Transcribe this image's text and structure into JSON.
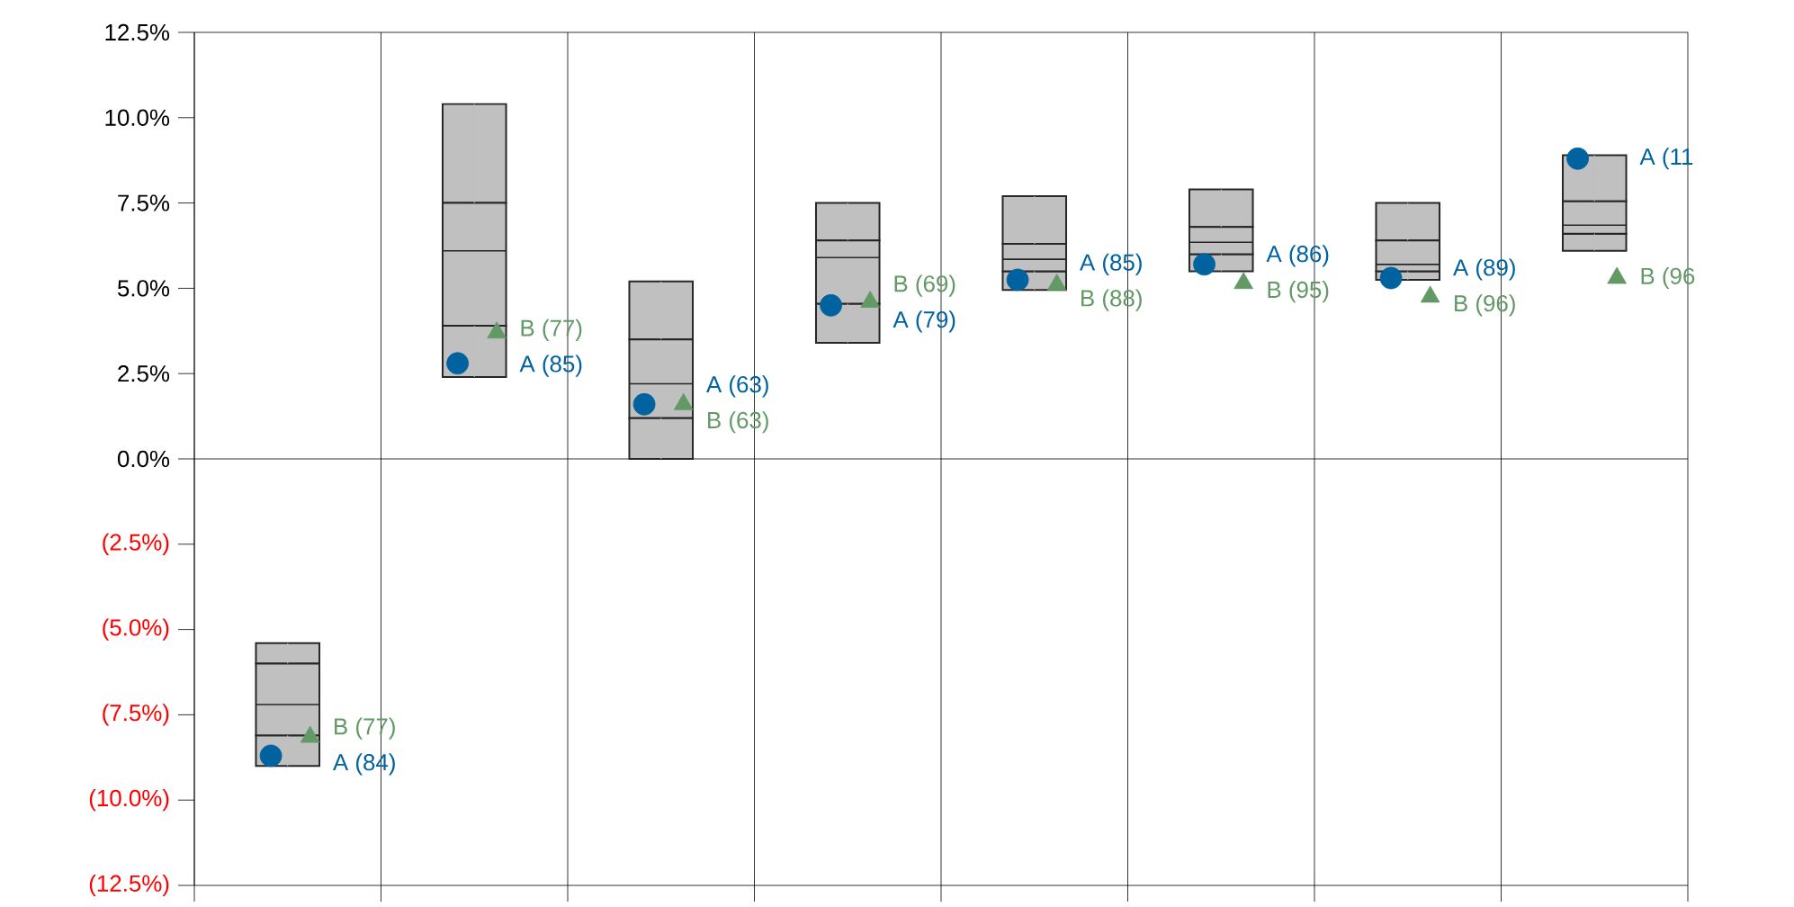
{
  "chart_data": {
    "type": "box",
    "color": "#c0c0c0",
    "categories": [
      null,
      null,
      null,
      null,
      null,
      null,
      null,
      null
    ],
    "boxes": [
      {
        "low": -9.0,
        "q1": -8.1,
        "median": -7.2,
        "q3": -6.0,
        "high": -5.4
      },
      {
        "low": 2.4,
        "q1": 3.9,
        "median": 6.1,
        "q3": 7.5,
        "high": 10.4
      },
      {
        "low": 0.0,
        "q1": 1.2,
        "median": 2.2,
        "q3": 3.5,
        "high": 5.2
      },
      {
        "low": 3.4,
        "q1": 4.55,
        "median": 5.9,
        "q3": 6.4,
        "high": 7.5
      },
      {
        "low": 4.95,
        "q1": 5.5,
        "median": 5.85,
        "q3": 6.3,
        "high": 7.7
      },
      {
        "low": 5.5,
        "q1": 6.0,
        "median": 6.35,
        "q3": 6.8,
        "high": 7.9
      },
      {
        "low": 5.25,
        "q1": 5.5,
        "median": 5.7,
        "q3": 6.4,
        "high": 7.5
      },
      {
        "low": 6.1,
        "q1": 6.6,
        "median": 6.85,
        "q3": 7.55,
        "high": 8.9
      }
    ],
    "series": [
      {
        "type": "scatter",
        "color": "#00639f",
        "marker": "circle",
        "values": [
          -8.7,
          2.8,
          1.6,
          4.5,
          5.25,
          5.7,
          5.3,
          8.8
        ]
      },
      {
        "type": "scatter",
        "color": "#629965",
        "marker": "triangle",
        "values": [
          -8.15,
          3.7,
          1.6,
          4.6,
          5.1,
          5.15,
          4.75,
          5.3
        ]
      }
    ],
    "annotations": [
      "A (84)",
      "A (85)",
      "A (63)",
      "A (79)",
      "A (85)",
      "A (86)",
      "A (89)",
      "A (11",
      "B (77)",
      "B (77)",
      "B (63)",
      "B (69)",
      "B (88)",
      "B (95)",
      "B (96)",
      "B (96"
    ],
    "ylim": [
      -12.5,
      12.5
    ],
    "yticks": [
      {
        "value": -12.5,
        "label": "(12.5%)"
      },
      {
        "value": -10,
        "label": "(10.0%)"
      },
      {
        "value": -7.5,
        "label": "(7.5%)"
      },
      {
        "value": -5,
        "label": "(5.0%)"
      },
      {
        "value": -2.5,
        "label": "(2.5%)"
      },
      {
        "value": 0,
        "label": "0.0%"
      },
      {
        "value": 2.5,
        "label": "2.5%"
      },
      {
        "value": 5,
        "label": "5.0%"
      },
      {
        "value": 7.5,
        "label": "7.5%"
      },
      {
        "value": 10,
        "label": "10.0%"
      },
      {
        "value": 12.5,
        "label": "12.5%"
      }
    ],
    "grid": "x",
    "tick_labels": "y",
    "ref_lines": [
      {
        "axis": "y",
        "value": 0
      }
    ]
  }
}
